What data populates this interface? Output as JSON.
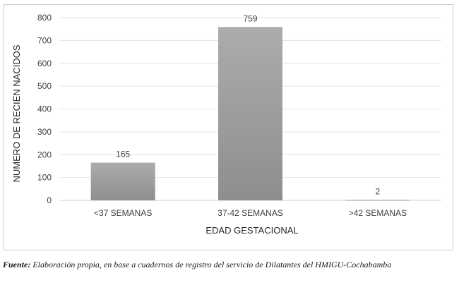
{
  "chart_data": {
    "type": "bar",
    "categories": [
      "<37 SEMANAS",
      "37-42 SEMANAS",
      ">42 SEMANAS"
    ],
    "values": [
      165,
      759,
      2
    ],
    "data_labels": [
      "165",
      "759",
      "2"
    ],
    "xlabel": "EDAD GESTACIONAL",
    "ylabel": "NUMERO DE RECIEN NACIDOS",
    "ylim": [
      0,
      800
    ],
    "yticks": [
      0,
      100,
      200,
      300,
      400,
      500,
      600,
      700,
      800
    ],
    "grid": true,
    "legend": "none",
    "bar_color": "#a6a6a6"
  },
  "source": {
    "label": "Fuente:",
    "text": " Elaboración propia, en base a cuadernos de registro del servicio de Dilatantes del HMIGU-Cochabamba"
  }
}
